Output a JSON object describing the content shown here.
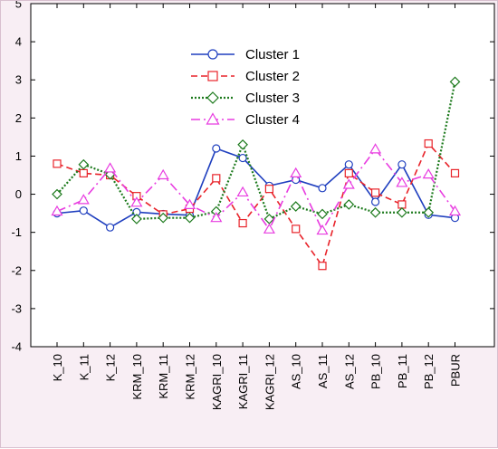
{
  "chart_data": {
    "type": "line",
    "title": "",
    "xlabel": "",
    "ylabel": "",
    "categories": [
      "K_10",
      "K_11",
      "K_12",
      "KRM_10",
      "KRM_11",
      "KRM_12",
      "KAGRI_10",
      "KAGRI_11",
      "KAGRI_12",
      "AS_10",
      "AS_11",
      "AS_12",
      "PB_10",
      "PB_11",
      "PB_12",
      "PBUR"
    ],
    "ylim": [
      -4,
      5
    ],
    "yticks": [
      -4,
      -3,
      -2,
      -1,
      0,
      1,
      2,
      3,
      4,
      5
    ],
    "grid": false,
    "legend_position": "top-center",
    "series": [
      {
        "name": "Cluster 1",
        "color": "#1f3fbf",
        "dash": "solid",
        "marker": "circle",
        "values": [
          -0.5,
          -0.43,
          -0.87,
          -0.47,
          -0.52,
          -0.55,
          1.2,
          0.95,
          0.22,
          0.38,
          0.16,
          0.78,
          -0.2,
          0.78,
          -0.54,
          -0.62
        ]
      },
      {
        "name": "Cluster 2",
        "color": "#e8232a",
        "dash": "dashed",
        "marker": "square",
        "values": [
          0.8,
          0.55,
          0.5,
          -0.05,
          -0.53,
          -0.38,
          0.42,
          -0.76,
          0.14,
          -0.91,
          -1.88,
          0.55,
          0.04,
          -0.27,
          1.33,
          0.55
        ]
      },
      {
        "name": "Cluster 3",
        "color": "#1d7a1d",
        "dash": "dotted",
        "marker": "diamond",
        "values": [
          0.0,
          0.78,
          0.52,
          -0.65,
          -0.62,
          -0.62,
          -0.45,
          1.3,
          -0.65,
          -0.32,
          -0.52,
          -0.27,
          -0.48,
          -0.48,
          -0.48,
          2.95
        ]
      },
      {
        "name": "Cluster 4",
        "color": "#e83ce0",
        "dash": "dashdot",
        "marker": "triangle",
        "values": [
          -0.45,
          -0.15,
          0.68,
          -0.22,
          0.5,
          -0.28,
          -0.62,
          0.05,
          -0.92,
          0.55,
          -0.95,
          0.25,
          1.18,
          0.3,
          0.52,
          -0.45
        ]
      }
    ]
  }
}
